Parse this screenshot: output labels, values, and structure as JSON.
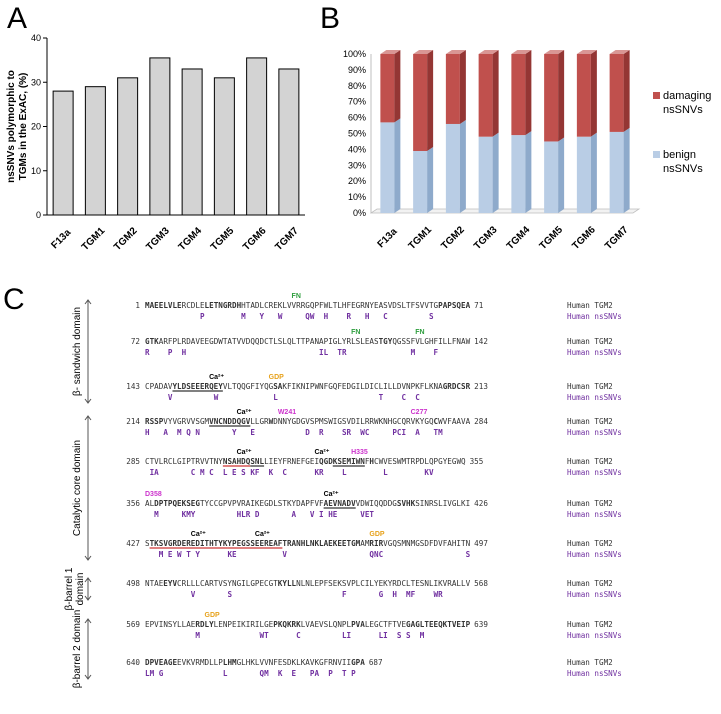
{
  "panels": {
    "a": "A",
    "b": "B",
    "c": "C"
  },
  "colors": {
    "gray_bar": "#d3d3d3",
    "damaging": "#c0504d",
    "benign": "#b9cde5",
    "red_motif": "#c00000",
    "blue_motif": "#00a0c6",
    "snv": "#7030a0",
    "fn": "#2e9e3e",
    "gdp": "#e7a21c",
    "ca": "#000000",
    "site": "#cc33cc",
    "text": "#333333"
  },
  "chart_data": [
    {
      "type": "bar",
      "categories": [
        "F13a",
        "TGM1",
        "TGM2",
        "TGM3",
        "TGM4",
        "TGM5",
        "TGM6",
        "TGM7"
      ],
      "values": [
        28,
        29,
        31,
        35.5,
        33,
        31,
        35.5,
        33
      ],
      "title": "",
      "xlabel": "",
      "ylabel": [
        "nsSNVs polymorphic to",
        "TGMs in the ExAC, (%)"
      ],
      "ylim": [
        0,
        40
      ],
      "yticks": [
        0,
        10,
        20,
        30,
        40
      ]
    },
    {
      "type": "bar",
      "stacked": true,
      "categories": [
        "F13a",
        "TGM1",
        "TGM2",
        "TGM3",
        "TGM4",
        "TGM5",
        "TGM6",
        "TGM7"
      ],
      "series": [
        {
          "name": "benign nsSNVs",
          "values": [
            57,
            39,
            56,
            48,
            49,
            45,
            48,
            51
          ]
        },
        {
          "name": "damaging nsSNVs",
          "values": [
            43,
            61,
            44,
            52,
            51,
            55,
            52,
            49
          ]
        }
      ],
      "ylim": [
        0,
        100
      ],
      "yticks": [
        "0%",
        "10%",
        "20%",
        "30%",
        "40%",
        "50%",
        "60%",
        "70%",
        "80%",
        "90%",
        "100%"
      ],
      "legend": [
        {
          "line1": "damaging",
          "line2": "nsSNVs"
        },
        {
          "line1": "benign",
          "line2": "nsSNVs"
        }
      ],
      "legend_position": "right"
    }
  ],
  "sequence": {
    "row_label": "Human TGM2",
    "snv_label": "Human nsSNVs",
    "rows": [
      {
        "start": "1",
        "end": "71",
        "segments": [
          {
            "t": "MAEELVLE",
            "c": "red"
          },
          {
            "t": "RCDLE",
            "c": "plain"
          },
          {
            "t": "LET",
            "c": "blue"
          },
          {
            "t": "NGRDH",
            "c": "red"
          },
          {
            "t": "HTADLCREK",
            "c": "plain"
          },
          {
            "t": "LVVRRGQPFWLTLHFEGRNYEASVDSLTFSVVTG",
            "c": "plain"
          },
          {
            "t": "PAPSQEA",
            "c": "red"
          }
        ],
        "snv": [
          {
            "t": "P",
            "col": 12
          },
          {
            "t": "M",
            "col": 21
          },
          {
            "t": "Y",
            "col": 25
          },
          {
            "t": "W",
            "col": 29
          },
          {
            "t": "Q",
            "col": 35
          },
          {
            "t": "W",
            "col": 36
          },
          {
            "t": "H",
            "col": 39
          },
          {
            "t": "R",
            "col": 44
          },
          {
            "t": "H",
            "col": 48
          },
          {
            "t": "C",
            "col": 52
          },
          {
            "t": "S",
            "col": 62
          }
        ],
        "annotations": [
          {
            "t": "FN",
            "col": 32,
            "c": "fn"
          }
        ]
      },
      {
        "start": "72",
        "end": "142",
        "segments": [
          {
            "t": "GTK",
            "c": "red"
          },
          {
            "t": "ARFPLRDAVEEGDWTATVVDQQDCTLSLQLTTPANAPIGLYRLSLEAS",
            "c": "plain"
          },
          {
            "t": "TGY",
            "c": "red"
          },
          {
            "t": "QGSSFVLGHFILLFNAW",
            "c": "plain"
          }
        ],
        "snv": [
          {
            "t": "R",
            "col": 0
          },
          {
            "t": "P",
            "col": 5
          },
          {
            "t": "H",
            "col": 8
          },
          {
            "t": "I",
            "col": 38
          },
          {
            "t": "L",
            "col": 39
          },
          {
            "t": "T",
            "col": 42
          },
          {
            "t": "R",
            "col": 43
          },
          {
            "t": "M",
            "col": 58
          },
          {
            "t": "F",
            "col": 63
          }
        ],
        "annotations": [
          {
            "t": "FN",
            "col": 45,
            "c": "fn"
          },
          {
            "t": "FN",
            "col": 59,
            "c": "fn"
          }
        ]
      },
      {
        "start": "143",
        "end": "213",
        "segments": [
          {
            "t": "CPADAV",
            "c": "plain"
          },
          {
            "t": "YLDSEEERQEY",
            "c": "bold-underline"
          },
          {
            "t": "VLTQQGFIYQG",
            "c": "plain"
          },
          {
            "t": "SA",
            "c": "gdp"
          },
          {
            "t": "KFIKNIPWNFGQFEDGILDICLILLDVNPKFLKNA",
            "c": "plain"
          },
          {
            "t": "GRDCSR",
            "c": "red"
          }
        ],
        "snv": [
          {
            "t": "V",
            "col": 5
          },
          {
            "t": "W",
            "col": 15
          },
          {
            "t": "L",
            "col": 28
          },
          {
            "t": "T",
            "col": 51
          },
          {
            "t": "C",
            "col": 56
          },
          {
            "t": "C",
            "col": 59
          }
        ],
        "annotations": [
          {
            "t": "Ca²⁺",
            "col": 14,
            "c": "ca"
          },
          {
            "t": "GDP",
            "col": 27,
            "c": "gdp"
          }
        ]
      },
      {
        "start": "214",
        "end": "284",
        "segments": [
          {
            "t": "RSSP",
            "c": "red"
          },
          {
            "t": "VYVGRVVSGM",
            "c": "plain"
          },
          {
            "t": "VNCNDDQGV",
            "c": "bold-underline"
          },
          {
            "t": "LLGR",
            "c": "plain"
          },
          {
            "t": "W",
            "c": "site"
          },
          {
            "t": "DNNYGDGVSPMSWIGSVDILRRWKNHGCQRVKYGQ",
            "c": "plain"
          },
          {
            "t": "C",
            "c": "site"
          },
          {
            "t": "WVFAAVA",
            "c": "plain"
          }
        ],
        "snv": [
          {
            "t": "H",
            "col": 0
          },
          {
            "t": "A",
            "col": 4
          },
          {
            "t": "M",
            "col": 7
          },
          {
            "t": "Q",
            "col": 9
          },
          {
            "t": "N",
            "col": 11
          },
          {
            "t": "Y",
            "col": 19
          },
          {
            "t": "E",
            "col": 23
          },
          {
            "t": "D",
            "col": 35
          },
          {
            "t": "R",
            "col": 38
          },
          {
            "t": "S",
            "col": 43
          },
          {
            "t": "R",
            "col": 44
          },
          {
            "t": "W",
            "col": 47
          },
          {
            "t": "C",
            "col": 48
          },
          {
            "t": "P",
            "col": 54
          },
          {
            "t": "C",
            "col": 55
          },
          {
            "t": "I",
            "col": 56
          },
          {
            "t": "A",
            "col": 59
          },
          {
            "t": "T",
            "col": 63
          },
          {
            "t": "M",
            "col": 64
          }
        ],
        "annotations": [
          {
            "t": "Ca²⁺",
            "col": 20,
            "c": "ca"
          },
          {
            "t": "W241",
            "col": 29,
            "c": "site"
          },
          {
            "t": "C277",
            "col": 58,
            "c": "site"
          }
        ]
      },
      {
        "start": "285",
        "end": "355",
        "segments": [
          {
            "t": "CTVLRCLGIPTRVVTNY",
            "c": "plain"
          },
          {
            "t": "NSAHDQ",
            "c": "red-underline"
          },
          {
            "t": "SNL",
            "c": "bold-underline"
          },
          {
            "t": "LIEYFRNEFGEI",
            "c": "plain"
          },
          {
            "t": "QGD",
            "c": "blue"
          },
          {
            "t": "KSEMIWN",
            "c": "bold-underline"
          },
          {
            "t": "F",
            "c": "plain"
          },
          {
            "t": "H",
            "c": "site"
          },
          {
            "t": "CWVESWMTRPDLQPGYEGWQ",
            "c": "plain"
          }
        ],
        "snv": [
          {
            "t": "I",
            "col": 1
          },
          {
            "t": "A",
            "col": 2
          },
          {
            "t": "C",
            "col": 10
          },
          {
            "t": "M",
            "col": 12
          },
          {
            "t": "C",
            "col": 14
          },
          {
            "t": "L",
            "col": 17
          },
          {
            "t": "E",
            "col": 19
          },
          {
            "t": "S",
            "col": 21
          },
          {
            "t": "K",
            "col": 23
          },
          {
            "t": "F",
            "col": 24
          },
          {
            "t": "K",
            "col": 27
          },
          {
            "t": "C",
            "col": 30
          },
          {
            "t": "K",
            "col": 37
          },
          {
            "t": "R",
            "col": 38
          },
          {
            "t": "L",
            "col": 43
          },
          {
            "t": "L",
            "col": 52
          },
          {
            "t": "K",
            "col": 61
          },
          {
            "t": "V",
            "col": 62
          }
        ],
        "annotations": [
          {
            "t": "Ca²⁺",
            "col": 20,
            "c": "ca"
          },
          {
            "t": "Ca²⁺",
            "col": 37,
            "c": "ca"
          },
          {
            "t": "H335",
            "col": 45,
            "c": "site"
          }
        ]
      },
      {
        "start": "356",
        "end": "426",
        "segments": [
          {
            "t": "AL",
            "c": "plain"
          },
          {
            "t": "D",
            "c": "site"
          },
          {
            "t": "PTPQEKSEG",
            "c": "red"
          },
          {
            "t": "TYCCGPVPVRAIKEGDLSTKYDAPFVF",
            "c": "plain"
          },
          {
            "t": "AEVNADV",
            "c": "bold-underline"
          },
          {
            "t": "VDWIQQDDG",
            "c": "plain"
          },
          {
            "t": "SVHK",
            "c": "red"
          },
          {
            "t": "SINRSLIVGLKI",
            "c": "plain"
          }
        ],
        "snv": [
          {
            "t": "M",
            "col": 2
          },
          {
            "t": "K",
            "col": 8
          },
          {
            "t": "M",
            "col": 9
          },
          {
            "t": "Y",
            "col": 10
          },
          {
            "t": "H",
            "col": 20
          },
          {
            "t": "L",
            "col": 21
          },
          {
            "t": "R",
            "col": 22
          },
          {
            "t": "D",
            "col": 24
          },
          {
            "t": "A",
            "col": 32
          },
          {
            "t": "V",
            "col": 36
          },
          {
            "t": "I",
            "col": 38
          },
          {
            "t": "H",
            "col": 40
          },
          {
            "t": "E",
            "col": 41
          },
          {
            "t": "V",
            "col": 47
          },
          {
            "t": "E",
            "col": 48
          },
          {
            "t": "T",
            "col": 49
          }
        ],
        "annotations": [
          {
            "t": "D358",
            "col": 0,
            "c": "site"
          },
          {
            "t": "Ca²⁺",
            "col": 39,
            "c": "ca"
          }
        ]
      },
      {
        "start": "427",
        "end": "497",
        "segments": [
          {
            "t": "S",
            "c": "plain"
          },
          {
            "t": "TKSVGRDEREDITHTYK",
            "c": "red-underline"
          },
          {
            "t": "YPEGSSEEREAF",
            "c": "red-underline"
          },
          {
            "t": "TRANHLNKLAEKEETGM",
            "c": "red"
          },
          {
            "t": "AM",
            "c": "plain"
          },
          {
            "t": "RIR",
            "c": "gdp"
          },
          {
            "t": "VGQSMNMGSDFDVFAHITN",
            "c": "plain"
          }
        ],
        "snv": [
          {
            "t": "M",
            "col": 3
          },
          {
            "t": "E",
            "col": 5
          },
          {
            "t": "W",
            "col": 7
          },
          {
            "t": "T",
            "col": 9
          },
          {
            "t": "Y",
            "col": 11
          },
          {
            "t": "K",
            "col": 18
          },
          {
            "t": "E",
            "col": 19
          },
          {
            "t": "V",
            "col": 30
          },
          {
            "t": "Q",
            "col": 49
          },
          {
            "t": "N",
            "col": 50
          },
          {
            "t": "C",
            "col": 51
          },
          {
            "t": "S",
            "col": 70
          }
        ],
        "annotations": [
          {
            "t": "Ca²⁺",
            "col": 10,
            "c": "ca"
          },
          {
            "t": "Ca²⁺",
            "col": 24,
            "c": "ca"
          },
          {
            "t": "GDP",
            "col": 49,
            "c": "gdp"
          }
        ]
      },
      {
        "start": "498",
        "end": "568",
        "segments": [
          {
            "t": "NTAE",
            "c": "plain"
          },
          {
            "t": "EYV",
            "c": "blue"
          },
          {
            "t": "CRLLLCARTVSYNGILGPECGT",
            "c": "plain"
          },
          {
            "t": "KYLL",
            "c": "blue"
          },
          {
            "t": "NLNLEPFSEKSVPLCILYEKYRDCLTESNLIKVRALLV",
            "c": "plain"
          }
        ],
        "snv": [
          {
            "t": "V",
            "col": 10
          },
          {
            "t": "S",
            "col": 18
          },
          {
            "t": "F",
            "col": 43
          },
          {
            "t": "G",
            "col": 51
          },
          {
            "t": "H",
            "col": 54
          },
          {
            "t": "M",
            "col": 57
          },
          {
            "t": "F",
            "col": 58
          },
          {
            "t": "W",
            "col": 63
          },
          {
            "t": "R",
            "col": 64
          }
        ]
      },
      {
        "start": "569",
        "end": "639",
        "segments": [
          {
            "t": "EPVINSYLLAE",
            "c": "plain"
          },
          {
            "t": "RDLY",
            "c": "gdp"
          },
          {
            "t": "LENPEIKIRILGE",
            "c": "plain"
          },
          {
            "t": "PKQKRK",
            "c": "red"
          },
          {
            "t": "LVAEVSLQNPL",
            "c": "plain"
          },
          {
            "t": "PVA",
            "c": "blue"
          },
          {
            "t": "LEGCTFTVE",
            "c": "plain"
          },
          {
            "t": "GAGLTEEQKTVEIP",
            "c": "red"
          }
        ],
        "snv": [
          {
            "t": "M",
            "col": 11
          },
          {
            "t": "W",
            "col": 25
          },
          {
            "t": "T",
            "col": 26
          },
          {
            "t": "C",
            "col": 33
          },
          {
            "t": "L",
            "col": 43
          },
          {
            "t": "I",
            "col": 44
          },
          {
            "t": "L",
            "col": 51
          },
          {
            "t": "I",
            "col": 52
          },
          {
            "t": "S",
            "col": 55
          },
          {
            "t": "S",
            "col": 57
          },
          {
            "t": "M",
            "col": 60
          }
        ],
        "annotations": [
          {
            "t": "GDP",
            "col": 13,
            "c": "gdp"
          }
        ]
      },
      {
        "start": "640",
        "end": "687",
        "segments": [
          {
            "t": "DPVEAGE",
            "c": "red"
          },
          {
            "t": "EVKVRMDLLP",
            "c": "plain"
          },
          {
            "t": "LHM",
            "c": "blue"
          },
          {
            "t": "GLHKLVVNFESDKLKAVKGFRNVII",
            "c": "plain"
          },
          {
            "t": "GPA",
            "c": "red"
          }
        ],
        "snv": [
          {
            "t": "L",
            "col": 0
          },
          {
            "t": "M",
            "col": 1
          },
          {
            "t": "G",
            "col": 3
          },
          {
            "t": "L",
            "col": 17
          },
          {
            "t": "Q",
            "col": 25
          },
          {
            "t": "M",
            "col": 26
          },
          {
            "t": "K",
            "col": 29
          },
          {
            "t": "E",
            "col": 32
          },
          {
            "t": "P",
            "col": 36
          },
          {
            "t": "A",
            "col": 37
          },
          {
            "t": "P",
            "col": 40
          },
          {
            "t": "T",
            "col": 43
          },
          {
            "t": "P",
            "col": 45
          }
        ]
      }
    ]
  },
  "domains": [
    {
      "label": "β- sandwich domain",
      "from_row": 0,
      "to_row": 2
    },
    {
      "label": "Catalytic core domain",
      "from_row": 3,
      "to_row": 6
    },
    {
      "label": "β-barrel 1 domain",
      "from_row": 7,
      "to_row": 7
    },
    {
      "label": "β-barrel 2 domain",
      "from_row": 8,
      "to_row": 9
    }
  ]
}
